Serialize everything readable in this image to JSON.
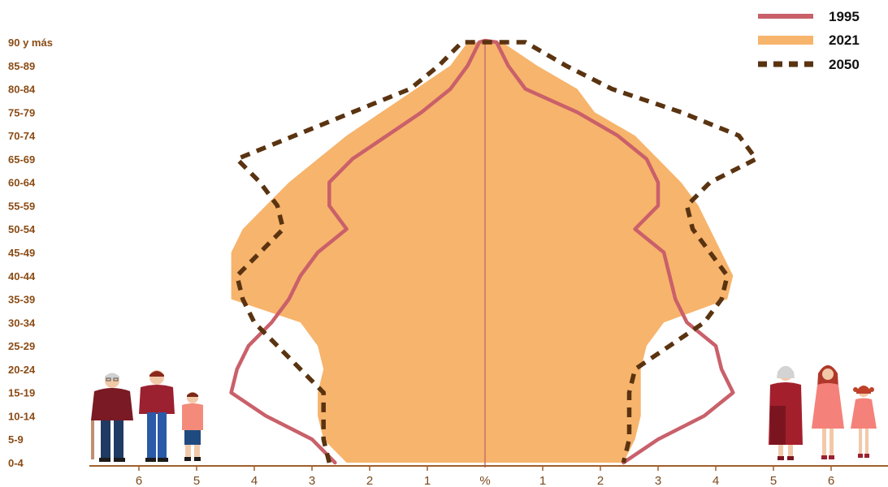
{
  "chart_data": {
    "type": "area",
    "subtype": "population-pyramid",
    "age_groups": [
      "0-4",
      "5-9",
      "10-14",
      "15-19",
      "20-24",
      "25-29",
      "30-34",
      "35-39",
      "40-44",
      "45-49",
      "50-54",
      "55-59",
      "60-64",
      "65-69",
      "70-74",
      "75-79",
      "80-84",
      "85-89",
      "90 y más"
    ],
    "x_ticks_left": [
      "6",
      "5",
      "4",
      "3",
      "2",
      "1"
    ],
    "x_center_label": "%",
    "x_ticks_right": [
      "1",
      "2",
      "3",
      "4",
      "5",
      "6"
    ],
    "xlim": [
      -6.8,
      6.8
    ],
    "series": [
      {
        "name": "1995",
        "style": "line",
        "color": "#c9606a",
        "left": [
          2.6,
          3.0,
          3.8,
          4.4,
          4.3,
          4.1,
          3.7,
          3.4,
          3.2,
          2.9,
          2.4,
          2.7,
          2.7,
          2.3,
          1.7,
          1.1,
          0.6,
          0.3,
          0.1
        ],
        "right": [
          2.4,
          3.0,
          3.8,
          4.3,
          4.1,
          4.0,
          3.5,
          3.3,
          3.2,
          3.1,
          2.6,
          3.0,
          3.0,
          2.8,
          2.3,
          1.6,
          0.7,
          0.4,
          0.2
        ]
      },
      {
        "name": "2021",
        "style": "area",
        "color": "#f7b46c",
        "left": [
          2.4,
          2.8,
          2.9,
          2.9,
          2.8,
          2.9,
          3.2,
          4.4,
          4.4,
          4.4,
          4.2,
          3.8,
          3.4,
          2.9,
          2.4,
          1.8,
          1.2,
          0.6,
          0.3
        ],
        "right": [
          2.4,
          2.6,
          2.7,
          2.7,
          2.7,
          2.8,
          3.1,
          4.2,
          4.3,
          4.1,
          3.9,
          3.7,
          3.4,
          3.0,
          2.6,
          1.9,
          1.6,
          0.9,
          0.3
        ]
      },
      {
        "name": "2050",
        "style": "dashed",
        "color": "#5a3310",
        "left": [
          2.7,
          2.8,
          2.8,
          2.8,
          3.2,
          3.6,
          4.0,
          4.2,
          4.3,
          3.9,
          3.5,
          3.6,
          3.9,
          4.3,
          3.3,
          2.3,
          1.3,
          0.8,
          0.4
        ],
        "right": [
          2.4,
          2.5,
          2.5,
          2.5,
          2.6,
          3.2,
          3.8,
          4.1,
          4.2,
          3.9,
          3.6,
          3.5,
          3.9,
          4.7,
          4.4,
          3.4,
          2.2,
          1.4,
          0.7
        ]
      }
    ],
    "legend_position": "top-right",
    "grid": false
  },
  "colors": {
    "axis": "#a0602a",
    "center_line": "#c9706a",
    "label_text": "#8a4b14"
  },
  "figures": {
    "left": [
      "elderly-man-with-cane-icon",
      "adult-man-icon",
      "boy-icon"
    ],
    "right": [
      "elderly-woman-icon",
      "adult-woman-icon",
      "girl-icon"
    ]
  }
}
